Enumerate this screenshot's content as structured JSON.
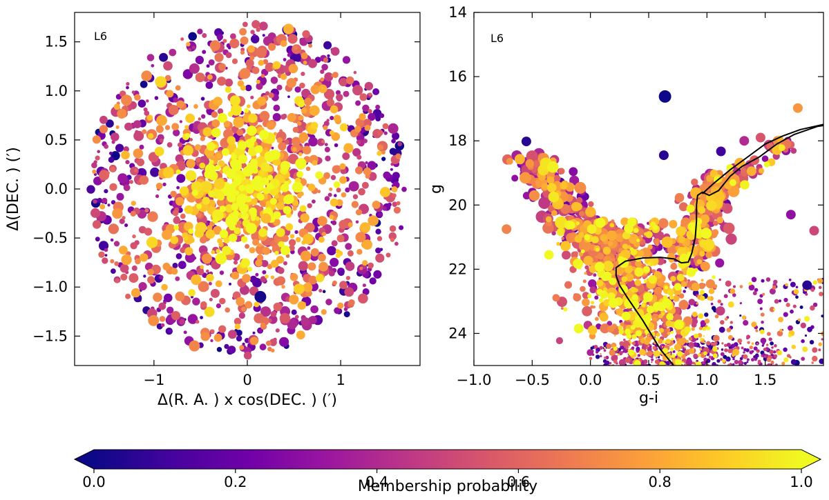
{
  "colormap": {
    "name": "plasma",
    "stops": [
      "#0d0887",
      "#46039f",
      "#7201a8",
      "#9c179e",
      "#bd3786",
      "#d8576b",
      "#ed7953",
      "#fb9f3a",
      "#fdca26",
      "#f0f921"
    ]
  },
  "chart_data": [
    {
      "type": "scatter",
      "title": "",
      "panel_label": "L6",
      "xlabel": "Δ(R. A. ) x cos(DEC. ) (′)",
      "ylabel": "Δ(DEC. ) (′)",
      "xlim": [
        -1.85,
        1.85
      ],
      "ylim": [
        -1.8,
        1.8
      ],
      "xticks": [
        -1,
        0,
        1
      ],
      "xtick_labels": [
        "−1",
        "0",
        "1"
      ],
      "yticks": [
        -1.5,
        -1.0,
        -0.5,
        0.0,
        0.5,
        1.0,
        1.5
      ],
      "ytick_labels": [
        "−1.5",
        "−1.0",
        "−0.5",
        "0.0",
        "0.5",
        "1.0",
        "1.5"
      ],
      "field_radius": 1.7,
      "n_points": 1700,
      "color_by": "Membership probability",
      "note": "Stars fill a circular field of radius ~1.7′; high-probability members concentrate toward the center."
    },
    {
      "type": "scatter",
      "title": "",
      "panel_label": "L6",
      "xlabel": "g-i",
      "ylabel": "g",
      "xlim": [
        -1.0,
        2.0
      ],
      "ylim": [
        25.0,
        14.0
      ],
      "xticks": [
        -1.0,
        -0.5,
        0.0,
        0.5,
        1.0,
        1.5
      ],
      "xtick_labels": [
        "−1.0",
        "−0.5",
        "0.0",
        "0.5",
        "1.0",
        "1.5"
      ],
      "yticks": [
        14,
        16,
        18,
        20,
        22,
        24
      ],
      "ytick_labels": [
        "14",
        "16",
        "18",
        "20",
        "22",
        "24"
      ],
      "color_by": "Membership probability",
      "isochrone": [
        [
          0.76,
          25.2
        ],
        [
          0.6,
          24.5
        ],
        [
          0.45,
          23.6
        ],
        [
          0.32,
          22.9
        ],
        [
          0.25,
          22.5
        ],
        [
          0.22,
          22.2
        ],
        [
          0.22,
          21.95
        ],
        [
          0.3,
          21.75
        ],
        [
          0.45,
          21.65
        ],
        [
          0.6,
          21.63
        ],
        [
          0.72,
          21.68
        ],
        [
          0.78,
          21.8
        ],
        [
          0.84,
          21.78
        ],
        [
          0.87,
          21.5
        ],
        [
          0.9,
          21.0
        ],
        [
          0.91,
          20.5
        ],
        [
          0.91,
          20.0
        ],
        [
          0.92,
          19.7
        ],
        [
          0.96,
          19.6
        ],
        [
          1.02,
          19.7
        ],
        [
          1.1,
          19.55
        ],
        [
          1.2,
          19.1
        ],
        [
          1.3,
          18.8
        ],
        [
          1.45,
          18.5
        ],
        [
          1.6,
          18.1
        ],
        [
          1.75,
          17.8
        ],
        [
          1.95,
          17.55
        ],
        [
          2.05,
          17.5
        ]
      ],
      "isochrone_branch2": [
        [
          0.96,
          19.65
        ],
        [
          1.05,
          19.35
        ],
        [
          1.2,
          18.9
        ],
        [
          1.35,
          18.5
        ],
        [
          1.5,
          18.1
        ],
        [
          1.65,
          17.85
        ],
        [
          1.8,
          17.65
        ],
        [
          2.05,
          17.45
        ]
      ],
      "notable_points": [
        {
          "x": 0.64,
          "y": 16.62,
          "p": 0.0
        },
        {
          "x": 1.78,
          "y": 16.98,
          "p": 0.75
        },
        {
          "x": -0.55,
          "y": 18.02,
          "p": 0.05
        },
        {
          "x": 0.63,
          "y": 18.45,
          "p": 0.05
        },
        {
          "x": 1.12,
          "y": 18.33,
          "p": 0.1
        },
        {
          "x": 1.32,
          "y": 18.0,
          "p": 0.4
        },
        {
          "x": 1.46,
          "y": 17.9,
          "p": 0.55
        },
        {
          "x": 1.86,
          "y": 22.5,
          "p": 0.05
        },
        {
          "x": -0.72,
          "y": 20.75,
          "p": 0.7
        },
        {
          "x": 1.72,
          "y": 20.3,
          "p": 0.3
        },
        {
          "x": 1.92,
          "y": 20.8,
          "p": 0.5
        }
      ]
    }
  ],
  "colorbar": {
    "label": "Membership probability",
    "ticks": [
      0.0,
      0.2,
      0.4,
      0.6,
      0.8,
      1.0
    ],
    "tick_labels": [
      "0.0",
      "0.2",
      "0.4",
      "0.6",
      "0.8",
      "1.0"
    ],
    "extend": "both"
  }
}
